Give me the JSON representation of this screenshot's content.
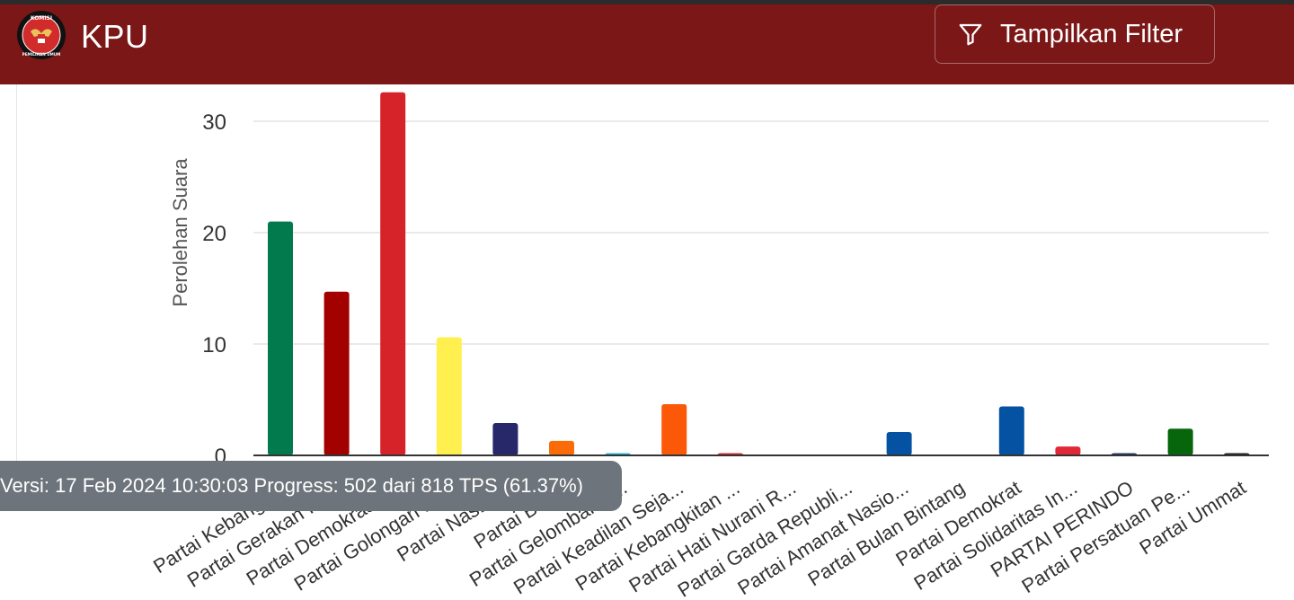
{
  "header": {
    "title": "KPU",
    "logo_text_top": "KOMISI",
    "logo_text_bottom": "PEMILIHAN UMUM",
    "filter_label": "Tampilkan Filter",
    "filter_icon": "funnel-icon"
  },
  "tooltip": {
    "text": "Versi: 17 Feb 2024 10:30:03 Progress: 502 dari 818 TPS (61.37%)"
  },
  "colors": {
    "header_bg": "#7b1717",
    "tooltip_bg": "#6d747b"
  },
  "chart_data": {
    "type": "bar",
    "ylabel": "Perolehan Suara",
    "ylim": [
      0,
      32.6
    ],
    "yticks": [
      0,
      10,
      20,
      30
    ],
    "grid": true,
    "categories": [
      "Partai Kebangki...",
      "Partai Gerakan Ind...",
      "Partai Demokrasi I...",
      "Partai Golongan Ka...",
      "Partai NasDem",
      "Partai Buruh",
      "Partai Gelombang ...",
      "Partai Keadilan Seja...",
      "Partai Kebangkitan ...",
      "Partai Hati Nurani R...",
      "Partai Garda Republi...",
      "Partai Amanat Nasio...",
      "Partai Bulan Bintang",
      "Partai Demokrat",
      "Partai Solidaritas In...",
      "PARTAI PERINDO",
      "Partai Persatuan Pe...",
      "Partai Ummat"
    ],
    "values": [
      21.0,
      14.7,
      32.6,
      10.6,
      2.9,
      1.3,
      0.2,
      4.6,
      0.2,
      0,
      0,
      2.1,
      0,
      4.4,
      0.8,
      0.2,
      2.4,
      0.2
    ],
    "bar_colors": [
      "#037a4e",
      "#a30000",
      "#d6232a",
      "#fff04f",
      "#27286a",
      "#fb6b08",
      "#20b7dc",
      "#fb5808",
      "#d82b2b",
      "#d82b2b",
      "#d82b2b",
      "#0552a3",
      "#0a7a3a",
      "#0552a3",
      "#e02838",
      "#27386a",
      "#07660c",
      "#222222"
    ]
  }
}
